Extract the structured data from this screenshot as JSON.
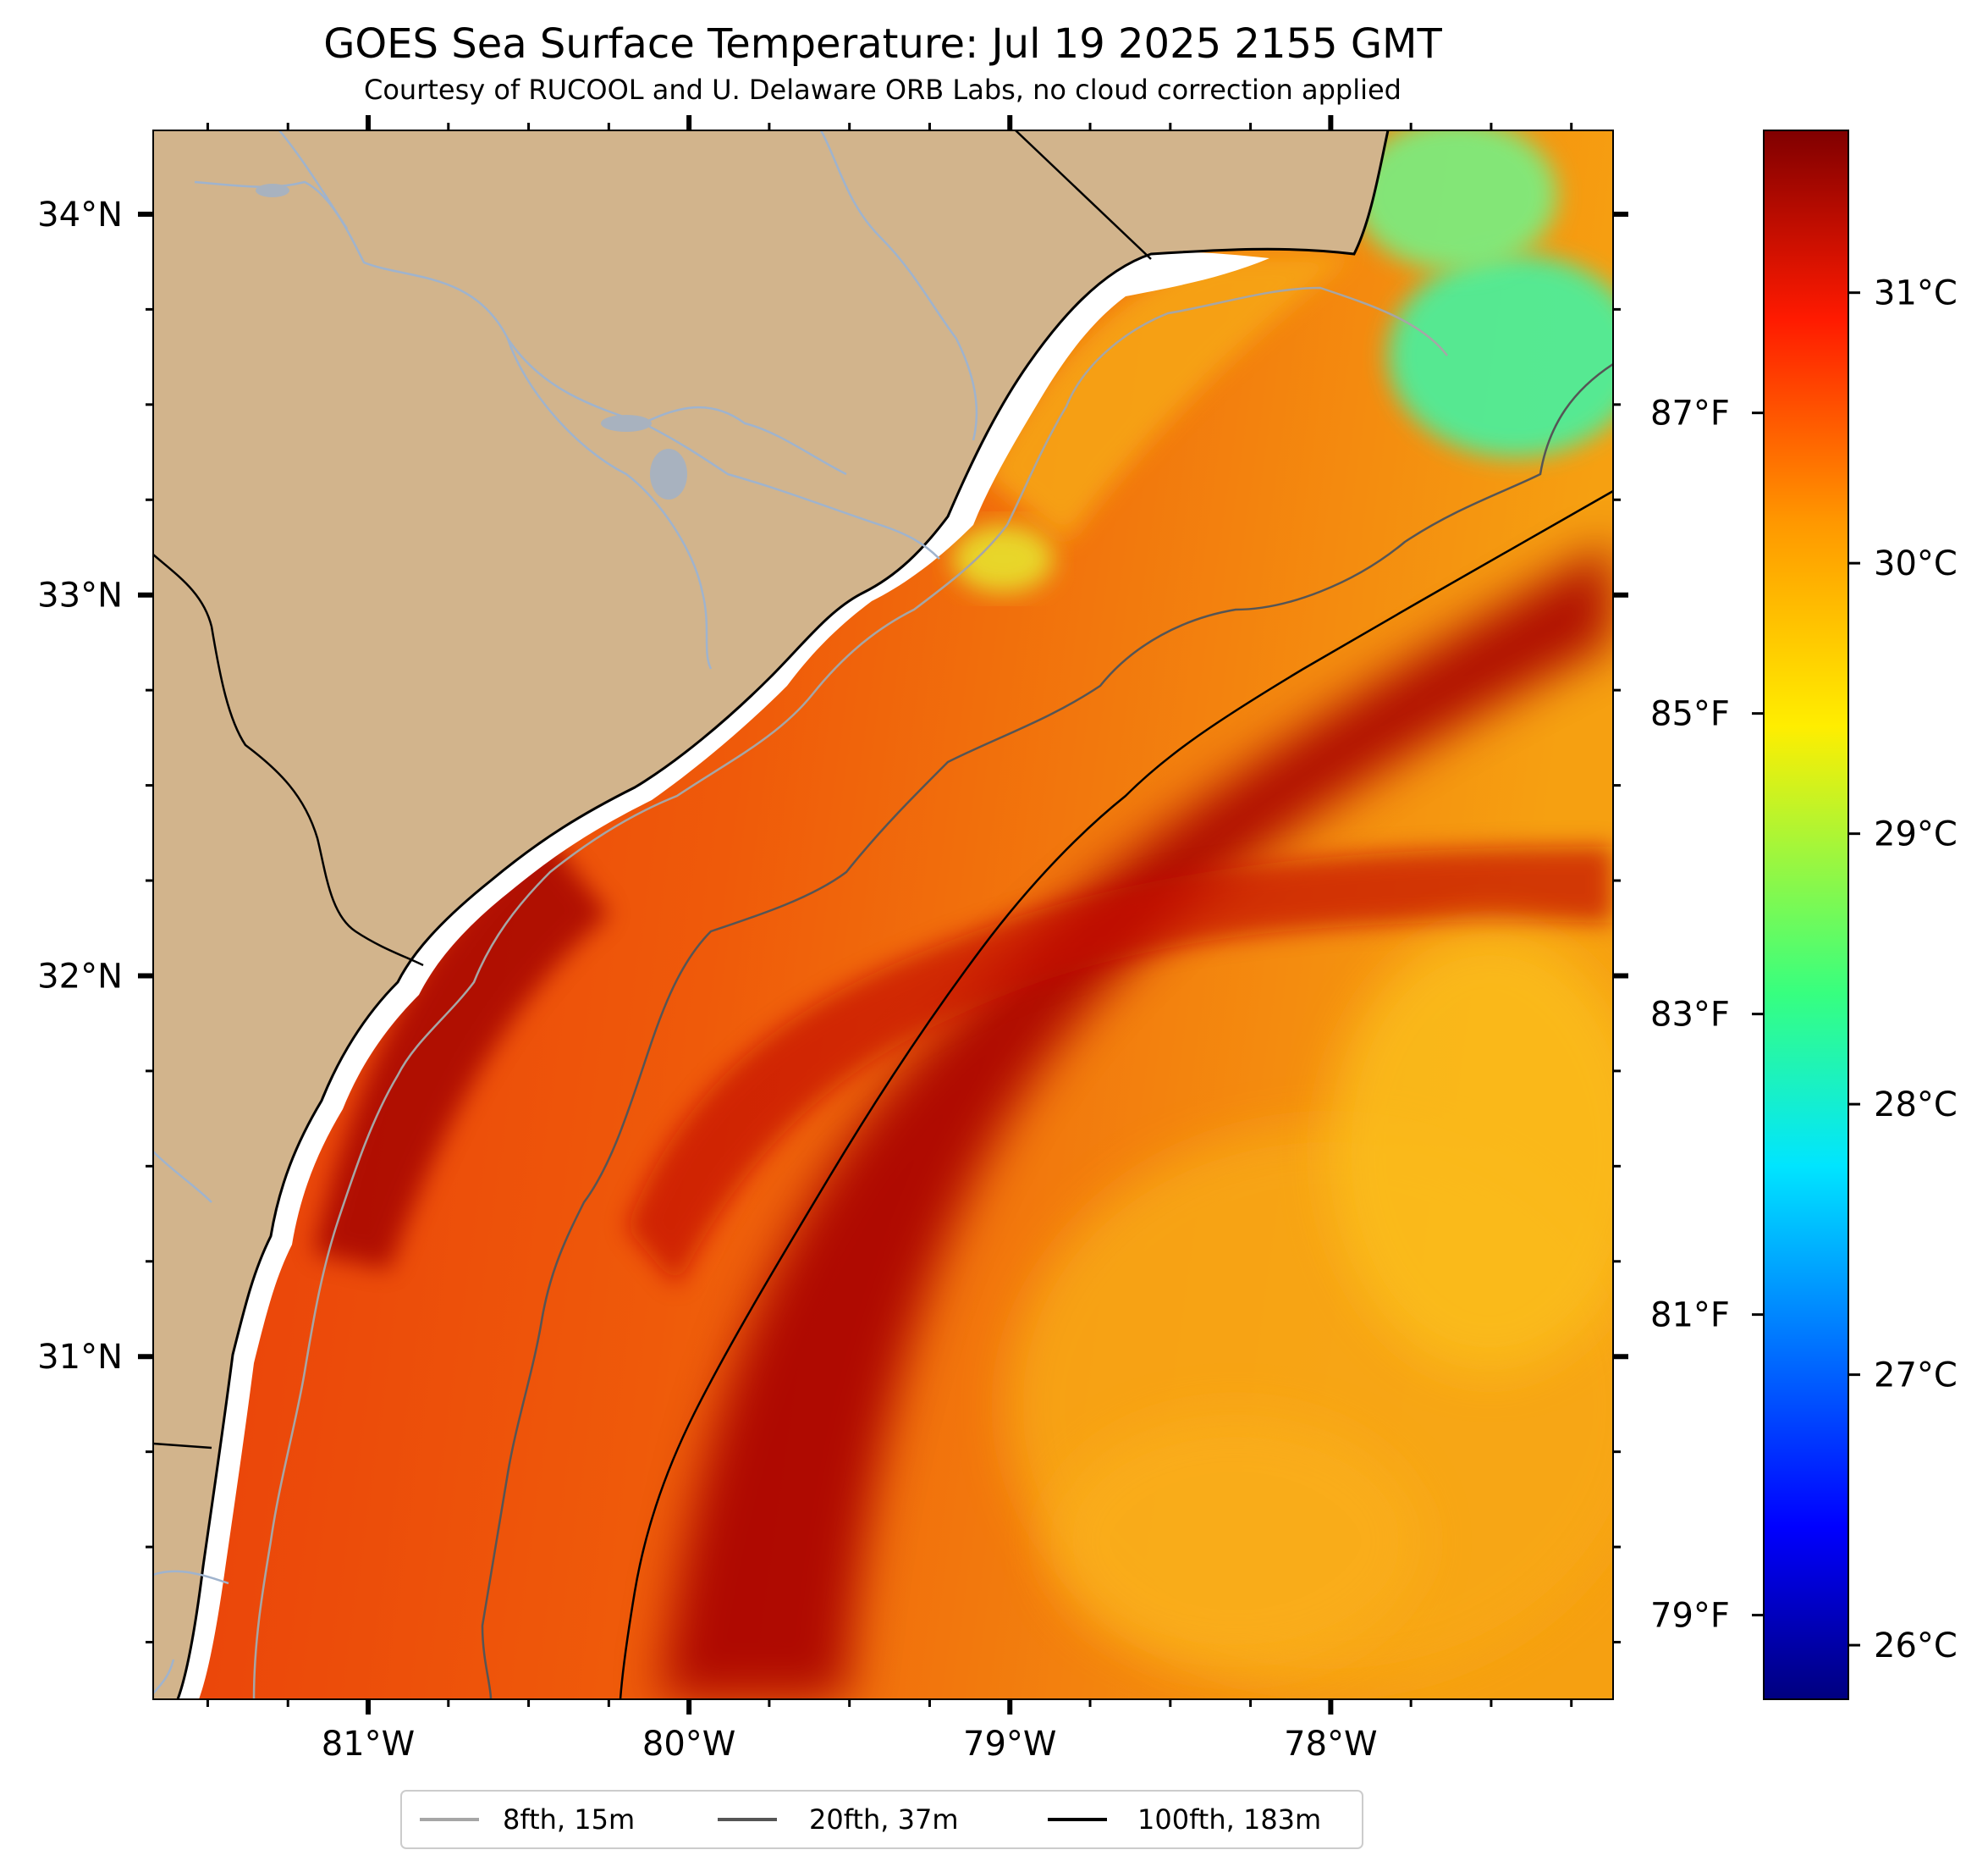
{
  "title": "GOES Sea Surface Temperature: Jul 19 2025 2155 GMT",
  "subtitle": "Courtesy of RUCOOL and U. Delaware ORB Labs, no cloud correction applied",
  "map_extent": {
    "lon": [
      -81.67,
      -77.12
    ],
    "lat": [
      30.1,
      34.22
    ]
  },
  "lon_ticks": [
    {
      "value": -81,
      "label": "81°W"
    },
    {
      "value": -80,
      "label": "80°W"
    },
    {
      "value": -79,
      "label": "79°W"
    },
    {
      "value": -78,
      "label": "78°W"
    }
  ],
  "lat_ticks": [
    {
      "value": 34,
      "label": "34°N"
    },
    {
      "value": 33,
      "label": "33°N"
    },
    {
      "value": 32,
      "label": "32°N"
    },
    {
      "value": 31,
      "label": "31°N"
    }
  ],
  "colorbar": {
    "colormap": "jet",
    "range_c": [
      25.8,
      31.6
    ],
    "celsius_ticks": [
      {
        "value": 31,
        "label": "31°C"
      },
      {
        "value": 30,
        "label": "30°C"
      },
      {
        "value": 29,
        "label": "29°C"
      },
      {
        "value": 28,
        "label": "28°C"
      },
      {
        "value": 27,
        "label": "27°C"
      },
      {
        "value": 26,
        "label": "26°C"
      }
    ],
    "fahrenheit_ticks": [
      {
        "value": 87,
        "label": "87°F"
      },
      {
        "value": 85,
        "label": "85°F"
      },
      {
        "value": 83,
        "label": "83°F"
      },
      {
        "value": 81,
        "label": "81°F"
      },
      {
        "value": 79,
        "label": "79°F"
      }
    ]
  },
  "legend": {
    "position": "bottom-center",
    "items": [
      {
        "label": "8fth, 15m",
        "color": "#a6a6a6"
      },
      {
        "label": "20fth, 37m",
        "color": "#555555"
      },
      {
        "label": "100fth, 183m",
        "color": "#000000"
      }
    ]
  },
  "colors": {
    "land": "#d2b48c",
    "rivers": "#9fb3cd",
    "coastline": "#000000"
  }
}
